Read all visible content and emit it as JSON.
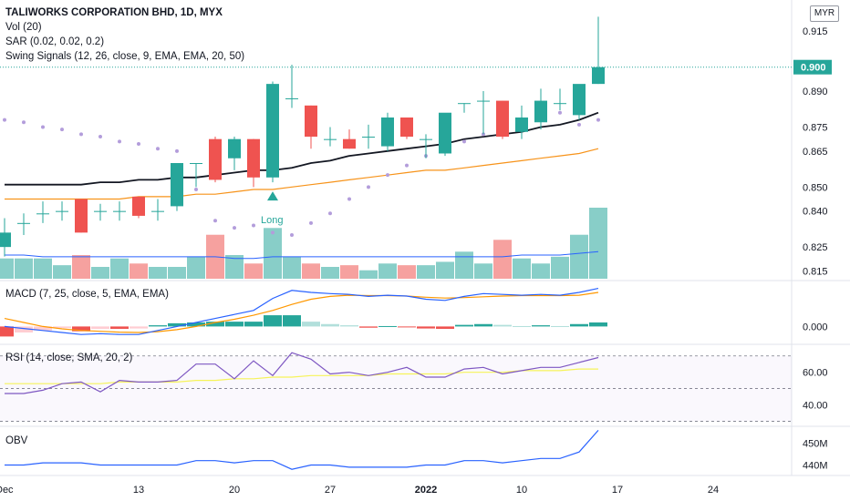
{
  "header": {
    "title": "TALIWORKS CORPORATION BHD, 1D, MYX",
    "indicators": [
      "Vol (20)",
      "SAR (0.02, 0.02, 0.2)",
      "Swing Signals (12, 26, close, 9, EMA, EMA, 20, 50)"
    ],
    "currency": "MYR"
  },
  "panes": {
    "macd_label": "MACD (7, 25, close, 5, EMA, EMA)",
    "rsi_label": "RSI (14, close, SMA, 20, 2)",
    "obv_label": "OBV"
  },
  "signal_label": "Long",
  "colors": {
    "up": "#26a69a",
    "down": "#ef5350",
    "ema_fast": "#131722",
    "ema_slow": "#f7931a",
    "sar": "#b39ddb",
    "macd": "#2962ff",
    "signal": "#ff9800",
    "rsi": "#7e57c2",
    "rsi_ma": "#f6f35a",
    "obv": "#2962ff"
  },
  "chart_data": [
    {
      "type": "candlestick",
      "title": "TALIWORKS CORPORATION BHD, 1D, MYX",
      "x_ticks": [
        "Dec",
        "13",
        "20",
        "27",
        "2022",
        "10",
        "17",
        "24"
      ],
      "ylim": [
        0.811,
        0.928
      ],
      "y_ticks": [
        0.815,
        0.825,
        0.84,
        0.85,
        0.865,
        0.875,
        0.89,
        0.9,
        0.915
      ],
      "last_price": 0.9,
      "ohlc": [
        [
          0.825,
          0.837,
          0.821,
          0.831
        ],
        [
          0.835,
          0.839,
          0.83,
          0.835
        ],
        [
          0.839,
          0.844,
          0.835,
          0.839
        ],
        [
          0.84,
          0.844,
          0.836,
          0.84
        ],
        [
          0.845,
          0.845,
          0.831,
          0.831
        ],
        [
          0.84,
          0.843,
          0.836,
          0.84
        ],
        [
          0.84,
          0.844,
          0.836,
          0.84
        ],
        [
          0.846,
          0.846,
          0.837,
          0.838
        ],
        [
          0.84,
          0.845,
          0.836,
          0.84
        ],
        [
          0.842,
          0.859,
          0.84,
          0.86
        ],
        [
          0.86,
          0.86,
          0.85,
          0.86
        ],
        [
          0.87,
          0.871,
          0.852,
          0.853
        ],
        [
          0.862,
          0.871,
          0.857,
          0.87
        ],
        [
          0.87,
          0.87,
          0.85,
          0.854
        ],
        [
          0.854,
          0.894,
          0.852,
          0.893
        ],
        [
          0.887,
          0.901,
          0.883,
          0.887
        ],
        [
          0.884,
          0.884,
          0.866,
          0.871
        ],
        [
          0.87,
          0.875,
          0.867,
          0.87
        ],
        [
          0.87,
          0.874,
          0.866,
          0.866
        ],
        [
          0.871,
          0.876,
          0.866,
          0.871
        ],
        [
          0.867,
          0.881,
          0.865,
          0.879
        ],
        [
          0.879,
          0.879,
          0.87,
          0.871
        ],
        [
          0.87,
          0.872,
          0.862,
          0.87
        ],
        [
          0.864,
          0.88,
          0.863,
          0.881
        ],
        [
          0.885,
          0.885,
          0.881,
          0.885
        ],
        [
          0.886,
          0.89,
          0.872,
          0.886
        ],
        [
          0.886,
          0.886,
          0.87,
          0.871
        ],
        [
          0.873,
          0.884,
          0.87,
          0.879
        ],
        [
          0.877,
          0.891,
          0.874,
          0.886
        ],
        [
          0.885,
          0.891,
          0.882,
          0.885
        ],
        [
          0.88,
          0.892,
          0.878,
          0.893
        ],
        [
          0.893,
          0.921,
          0.893,
          0.9
        ]
      ],
      "ema_fast": [
        0.851,
        0.851,
        0.851,
        0.851,
        0.851,
        0.852,
        0.852,
        0.853,
        0.853,
        0.854,
        0.854,
        0.855,
        0.856,
        0.857,
        0.857,
        0.858,
        0.86,
        0.861,
        0.863,
        0.864,
        0.865,
        0.866,
        0.867,
        0.868,
        0.87,
        0.871,
        0.872,
        0.873,
        0.875,
        0.876,
        0.878,
        0.881
      ],
      "ema_slow": [
        0.845,
        0.845,
        0.845,
        0.845,
        0.845,
        0.845,
        0.845,
        0.846,
        0.846,
        0.846,
        0.847,
        0.847,
        0.848,
        0.849,
        0.849,
        0.85,
        0.851,
        0.852,
        0.853,
        0.854,
        0.855,
        0.856,
        0.857,
        0.857,
        0.858,
        0.859,
        0.86,
        0.861,
        0.862,
        0.863,
        0.864,
        0.866
      ],
      "sar": [
        0.878,
        0.877,
        0.875,
        0.874,
        0.872,
        0.871,
        0.869,
        0.868,
        0.866,
        0.865,
        0.849,
        0.836,
        0.833,
        0.834,
        0.831,
        0.83,
        0.835,
        0.839,
        0.845,
        0.85,
        0.855,
        0.859,
        0.863,
        0.866,
        0.869,
        0.872,
        0.875,
        0.877,
        0.879,
        0.881,
        0.876,
        0.878
      ],
      "volume": [
        12,
        12,
        12,
        8,
        14,
        7,
        12,
        9,
        7,
        7,
        13,
        26,
        14,
        9,
        30,
        13,
        9,
        7,
        8,
        5,
        9,
        8,
        8,
        10,
        16,
        9,
        23,
        12,
        9,
        13,
        26,
        42
      ],
      "volume_ma": [
        14,
        14,
        13,
        13,
        13,
        13,
        13,
        13,
        13,
        13,
        13,
        13,
        12,
        12,
        13,
        13,
        13,
        13,
        13,
        13,
        13,
        13,
        13,
        13,
        13,
        13,
        13,
        14,
        14,
        14,
        15,
        16
      ],
      "signals": [
        {
          "index": 14,
          "label": "Long"
        }
      ]
    },
    {
      "type": "macd",
      "title": "MACD (7, 25, close, 5, EMA, EMA)",
      "y_ticks": [
        0.0
      ],
      "ylim": [
        -0.004,
        0.011
      ],
      "macd": [
        0.0,
        -0.0005,
        -0.001,
        -0.0015,
        -0.002,
        -0.0018,
        -0.002,
        -0.002,
        -0.001,
        0.0,
        0.001,
        0.002,
        0.003,
        0.004,
        0.007,
        0.009,
        0.0085,
        0.0082,
        0.008,
        0.0075,
        0.0078,
        0.0076,
        0.0068,
        0.0065,
        0.0075,
        0.0082,
        0.008,
        0.0078,
        0.008,
        0.0078,
        0.0085,
        0.0095
      ],
      "signal": [
        0.002,
        0.001,
        0.0,
        -0.0006,
        -0.001,
        -0.0012,
        -0.0014,
        -0.0015,
        -0.0013,
        -0.0008,
        0.0,
        0.001,
        0.0018,
        0.0028,
        0.004,
        0.0055,
        0.0068,
        0.0075,
        0.0078,
        0.0077,
        0.0077,
        0.0076,
        0.0073,
        0.0071,
        0.0072,
        0.0074,
        0.0076,
        0.0077,
        0.0077,
        0.0077,
        0.0078,
        0.0085
      ],
      "histogram": [
        -0.0025,
        -0.0015,
        -0.001,
        -0.0004,
        -0.0012,
        -0.0006,
        -0.0006,
        -0.0005,
        0.0003,
        0.0008,
        0.001,
        0.0012,
        0.0012,
        0.0012,
        0.0028,
        0.0028,
        0.0012,
        0.0006,
        0.0003,
        -0.0003,
        0.0001,
        -0.0001,
        -0.0005,
        -0.0006,
        0.0004,
        0.0006,
        0.0004,
        0.0001,
        0.0003,
        0.0001,
        0.0006,
        0.001
      ]
    },
    {
      "type": "rsi",
      "title": "RSI (14, close, SMA, 20, 2)",
      "y_ticks": [
        60.0,
        40.0
      ],
      "ylim": [
        28,
        76
      ],
      "bands": [
        70,
        50,
        30
      ],
      "rsi": [
        47,
        47,
        49,
        53,
        54,
        48,
        55,
        54,
        54,
        55,
        65,
        65,
        56,
        67,
        58,
        72,
        68,
        59,
        60,
        58,
        60,
        63,
        57,
        57,
        62,
        63,
        59,
        61,
        63,
        63,
        66,
        69
      ],
      "rsi_ma": [
        53,
        53,
        53,
        53,
        53,
        53,
        54,
        54,
        54,
        54,
        55,
        55,
        56,
        56,
        57,
        57,
        58,
        58,
        58,
        58,
        59,
        59,
        59,
        59,
        60,
        60,
        60,
        61,
        61,
        61,
        62,
        62
      ]
    },
    {
      "type": "obv",
      "title": "OBV",
      "y_ticks": [
        "450M",
        "440M"
      ],
      "ylim": [
        436,
        457
      ],
      "obv": [
        440,
        440,
        441,
        441,
        441,
        440,
        440,
        440,
        440,
        440,
        442,
        442,
        441,
        442,
        442,
        438,
        440,
        440,
        439,
        439,
        439,
        439,
        440,
        440,
        442,
        442,
        441,
        442,
        443,
        443,
        446,
        456
      ]
    }
  ]
}
